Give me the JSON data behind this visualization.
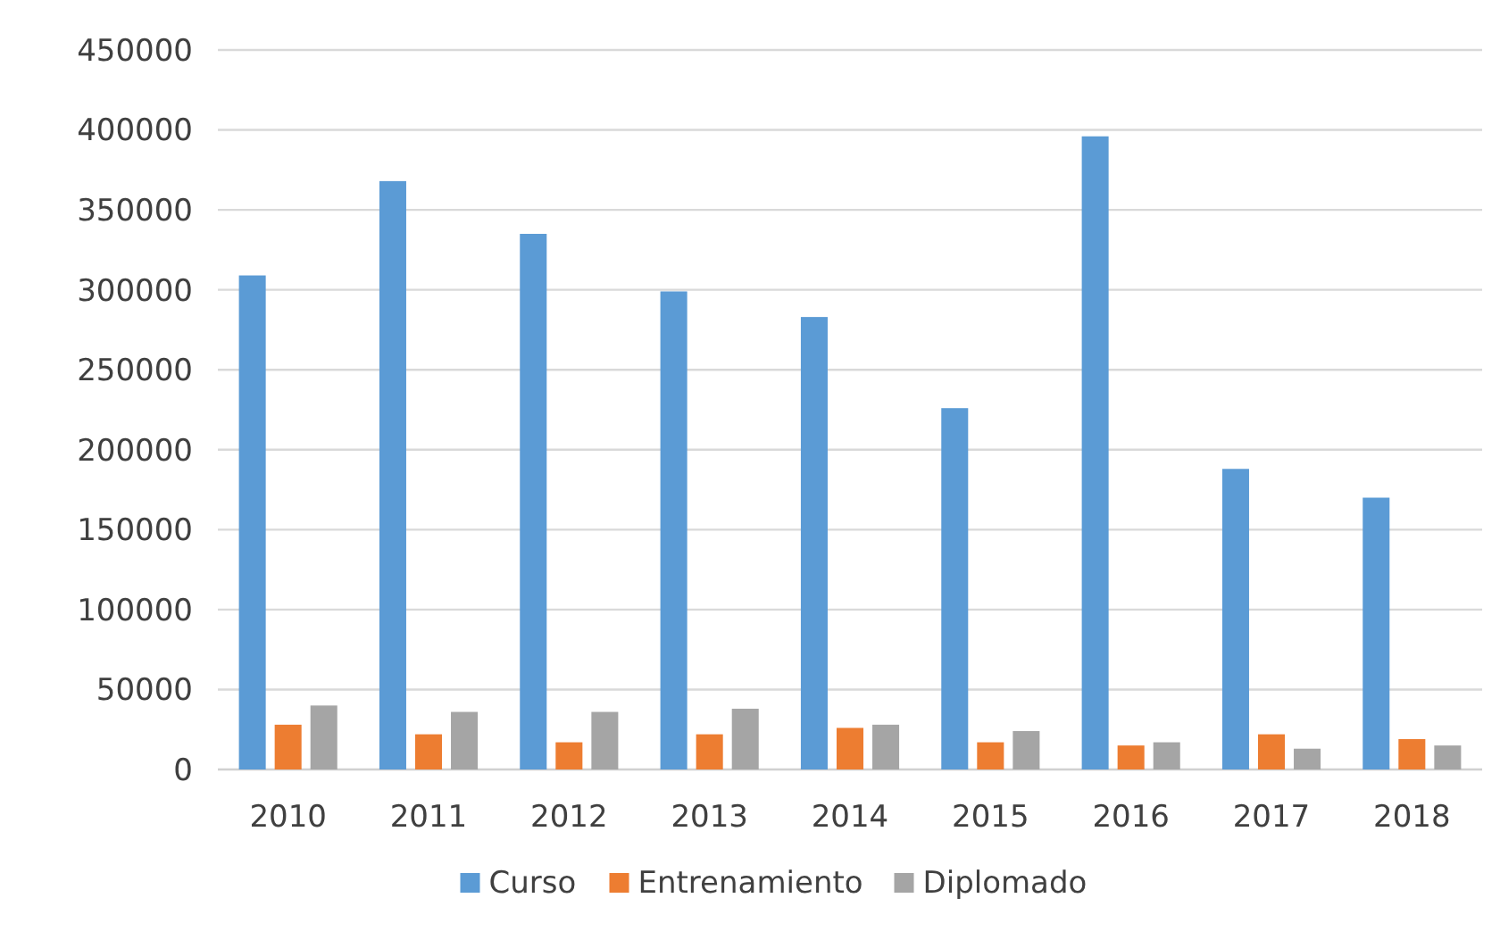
{
  "chart_data": {
    "type": "bar",
    "categories": [
      "2010",
      "2011",
      "2012",
      "2013",
      "2014",
      "2015",
      "2016",
      "2017",
      "2018"
    ],
    "series": [
      {
        "name": "Curso",
        "color": "#5b9bd5",
        "values": [
          309000,
          368000,
          335000,
          299000,
          283000,
          226000,
          396000,
          188000,
          170000
        ]
      },
      {
        "name": "Entrenamiento",
        "color": "#ed7d31",
        "values": [
          28000,
          22000,
          17000,
          22000,
          26000,
          17000,
          15000,
          22000,
          19000
        ]
      },
      {
        "name": "Diplomado",
        "color": "#a5a5a5",
        "values": [
          40000,
          36000,
          36000,
          38000,
          28000,
          24000,
          17000,
          13000,
          15000
        ]
      }
    ],
    "ylim": [
      0,
      450000
    ],
    "yticks": [
      0,
      50000,
      100000,
      150000,
      200000,
      250000,
      300000,
      350000,
      400000,
      450000
    ],
    "grid": "y",
    "legend": "bottom"
  }
}
